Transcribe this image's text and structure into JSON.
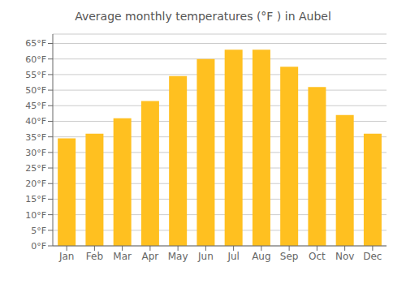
{
  "chart_data": {
    "type": "bar",
    "title": "Average monthly temperatures (°F ) in Aubel",
    "categories": [
      "Jan",
      "Feb",
      "Mar",
      "Apr",
      "May",
      "Jun",
      "Jul",
      "Aug",
      "Sep",
      "Oct",
      "Nov",
      "Dec"
    ],
    "values": [
      34.5,
      36.0,
      41.0,
      46.5,
      54.5,
      60.0,
      63.0,
      63.0,
      57.5,
      51.0,
      42.0,
      36.0
    ],
    "color": "#FFC020",
    "ylim": [
      0,
      68
    ],
    "yticks": [
      {
        "value": 0,
        "label": "0°F"
      },
      {
        "value": 5,
        "label": "5°F"
      },
      {
        "value": 10,
        "label": "10°F"
      },
      {
        "value": 15,
        "label": "15°F"
      },
      {
        "value": 20,
        "label": "20°F"
      },
      {
        "value": 25,
        "label": "25°F"
      },
      {
        "value": 30,
        "label": "30°F"
      },
      {
        "value": 35,
        "label": "35°F"
      },
      {
        "value": 40,
        "label": "40°F"
      },
      {
        "value": 45,
        "label": "45°F"
      },
      {
        "value": 50,
        "label": "50°F"
      },
      {
        "value": 55,
        "label": "55°F"
      },
      {
        "value": 60,
        "label": "60°F"
      },
      {
        "value": 65,
        "label": "65°F"
      }
    ],
    "grid": true
  }
}
